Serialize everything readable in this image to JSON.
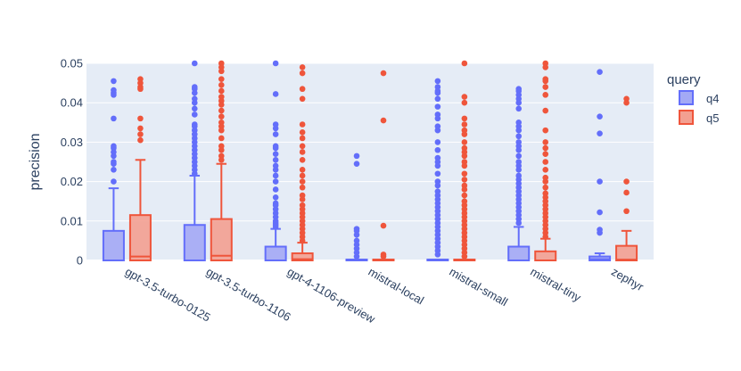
{
  "chart_data": {
    "type": "box",
    "title": "",
    "xlabel": "",
    "ylabel": "precision",
    "ylim": [
      0,
      0.05
    ],
    "yticks": [
      0,
      0.01,
      0.02,
      0.03,
      0.04,
      0.05
    ],
    "ytick_labels": [
      "0",
      "0.01",
      "0.02",
      "0.03",
      "0.04",
      "0.05"
    ],
    "categories": [
      "gpt-3.5-turbo-0125",
      "gpt-3.5-turbo-1106",
      "gpt-4-1106-preview",
      "mistral-local",
      "mistral-small",
      "mistral-tiny",
      "zephyr"
    ],
    "legend": {
      "title": "query",
      "position": "top-right"
    },
    "series": [
      {
        "name": "q4",
        "color": "#636efa",
        "fill": "#a3a9f5",
        "boxes": [
          {
            "q1": 0,
            "median": 0,
            "q3": 0.0075,
            "lower": 0,
            "upper": 0.0183,
            "outliers": [
              0.0455,
              0.0432,
              0.0425,
              0.042,
              0.036,
              0.029,
              0.0285,
              0.0275,
              0.0265,
              0.025,
              0.0245,
              0.023,
              0.02
            ]
          },
          {
            "q1": 0,
            "median": 0,
            "q3": 0.009,
            "lower": 0,
            "upper": 0.0215,
            "outliers": [
              0.05,
              0.044,
              0.0435,
              0.0425,
              0.041,
              0.04,
              0.0385,
              0.037,
              0.0345,
              0.034,
              0.033,
              0.032,
              0.031,
              0.03,
              0.029,
              0.028,
              0.027,
              0.026,
              0.025,
              0.024,
              0.023,
              0.022
            ]
          },
          {
            "q1": 0,
            "median": 0,
            "q3": 0.0035,
            "lower": 0,
            "upper": 0.008,
            "outliers": [
              0.05,
              0.0422,
              0.0345,
              0.0335,
              0.032,
              0.029,
              0.0285,
              0.027,
              0.0255,
              0.024,
              0.023,
              0.0215,
              0.02,
              0.018,
              0.016,
              0.0145,
              0.014,
              0.013,
              0.012,
              0.011,
              0.01,
              0.0095,
              0.009,
              0.0085
            ]
          },
          {
            "q1": 0,
            "median": 0,
            "q3": 0.0001,
            "lower": 0,
            "upper": 0.0001,
            "outliers": [
              0.0265,
              0.0245,
              0.008,
              0.0075,
              0.0065,
              0.005,
              0.004,
              0.003,
              0.002,
              0.001
            ]
          },
          {
            "q1": 0,
            "median": 0,
            "q3": 0.0001,
            "lower": 0,
            "upper": 0.0001,
            "outliers": [
              0.0455,
              0.044,
              0.043,
              0.0425,
              0.041,
              0.039,
              0.037,
              0.036,
              0.034,
              0.033,
              0.03,
              0.028,
              0.026,
              0.025,
              0.024,
              0.022,
              0.02,
              0.019,
              0.0175,
              0.0165,
              0.0155,
              0.0145,
              0.0135,
              0.0125,
              0.0115,
              0.0105,
              0.0095,
              0.0085,
              0.0075,
              0.0065,
              0.0055,
              0.0045,
              0.0035,
              0.0025,
              0.0015
            ]
          },
          {
            "q1": 0,
            "median": 0,
            "q3": 0.0035,
            "lower": 0,
            "upper": 0.0085,
            "outliers": [
              0.0435,
              0.043,
              0.042,
              0.041,
              0.04,
              0.0385,
              0.035,
              0.034,
              0.033,
              0.0315,
              0.03,
              0.029,
              0.028,
              0.0265,
              0.025,
              0.024,
              0.023,
              0.0215,
              0.0205,
              0.0195,
              0.0185,
              0.0175,
              0.0165,
              0.0155,
              0.0145,
              0.0135,
              0.0125,
              0.0115,
              0.0105,
              0.0095
            ]
          },
          {
            "q1": 0,
            "median": 0.0003,
            "q3": 0.001,
            "lower": 0,
            "upper": 0.0018,
            "outliers": [
              0.0478,
              0.0365,
              0.0322,
              0.02,
              0.0122,
              0.0078,
              0.007
            ]
          }
        ]
      },
      {
        "name": "q5",
        "color": "#ef553b",
        "fill": "#f3a091",
        "boxes": [
          {
            "q1": 0,
            "median": 0.001,
            "q3": 0.0115,
            "lower": 0,
            "upper": 0.0255,
            "outliers": [
              0.046,
              0.045,
              0.044,
              0.0435,
              0.036,
              0.0335,
              0.032,
              0.0305
            ]
          },
          {
            "q1": 0,
            "median": 0.0012,
            "q3": 0.0105,
            "lower": 0,
            "upper": 0.0245,
            "outliers": [
              0.05,
              0.049,
              0.048,
              0.046,
              0.0445,
              0.043,
              0.0415,
              0.0405,
              0.0395,
              0.038,
              0.0365,
              0.035,
              0.034,
              0.033,
              0.031,
              0.029,
              0.028,
              0.0265,
              0.0255
            ]
          },
          {
            "q1": 0,
            "median": 0.0003,
            "q3": 0.0018,
            "lower": 0,
            "upper": 0.0045,
            "outliers": [
              0.049,
              0.0475,
              0.0435,
              0.041,
              0.0345,
              0.0325,
              0.031,
              0.029,
              0.0275,
              0.0255,
              0.023,
              0.0215,
              0.02,
              0.0185,
              0.0165,
              0.0155,
              0.014,
              0.013,
              0.012,
              0.011,
              0.01,
              0.009,
              0.008,
              0.007,
              0.006,
              0.005
            ]
          },
          {
            "q1": 0,
            "median": 0,
            "q3": 0.0001,
            "lower": 0,
            "upper": 0.0001,
            "outliers": [
              0.0475,
              0.0355,
              0.0088,
              0.0015,
              0.001
            ]
          },
          {
            "q1": 0,
            "median": 0,
            "q3": 0.0001,
            "lower": 0,
            "upper": 0.0001,
            "outliers": [
              0.05,
              0.0415,
              0.04,
              0.036,
              0.0345,
              0.033,
              0.032,
              0.03,
              0.0285,
              0.0275,
              0.0265,
              0.025,
              0.024,
              0.022,
              0.0205,
              0.019,
              0.018,
              0.0165,
              0.015,
              0.014,
              0.013,
              0.012,
              0.011,
              0.01,
              0.009,
              0.008,
              0.007,
              0.006,
              0.005,
              0.004,
              0.003,
              0.002,
              0.001
            ]
          },
          {
            "q1": 0,
            "median": 0,
            "q3": 0.0023,
            "lower": 0,
            "upper": 0.0055,
            "outliers": [
              0.05,
              0.049,
              0.046,
              0.0455,
              0.044,
              0.042,
              0.038,
              0.033,
              0.03,
              0.0285,
              0.027,
              0.025,
              0.023,
              0.021,
              0.02,
              0.0185,
              0.017,
              0.016,
              0.015,
              0.014,
              0.013,
              0.012,
              0.011,
              0.01,
              0.009,
              0.008,
              0.007,
              0.006
            ]
          },
          {
            "q1": 0,
            "median": 0.0002,
            "q3": 0.0037,
            "lower": 0,
            "upper": 0.0075,
            "outliers": [
              0.041,
              0.04,
              0.02,
              0.0172,
              0.0125
            ]
          }
        ]
      }
    ]
  }
}
